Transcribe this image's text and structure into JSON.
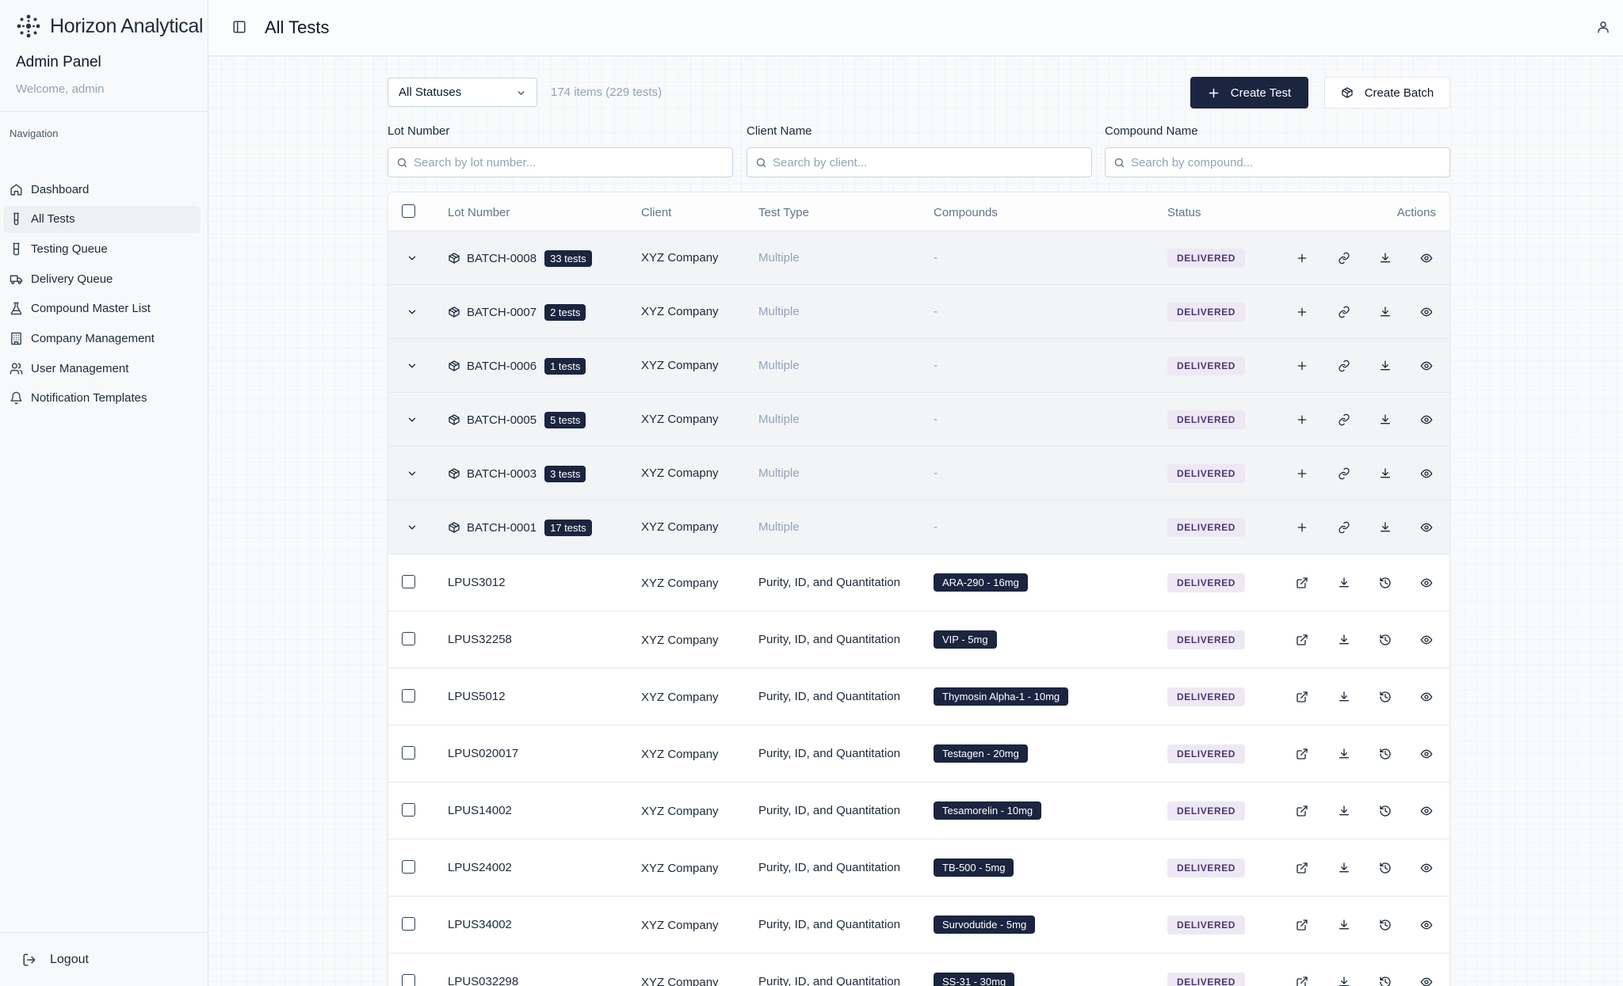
{
  "brand": {
    "name": "Horizon Analytical"
  },
  "sidebar": {
    "title": "Admin Panel",
    "welcome": "Welcome, admin",
    "nav_heading": "Navigation",
    "items": [
      {
        "label": "Dashboard",
        "icon": "home-icon"
      },
      {
        "label": "All Tests",
        "icon": "test-tube-icon",
        "active": true
      },
      {
        "label": "Testing Queue",
        "icon": "flask-icon"
      },
      {
        "label": "Delivery Queue",
        "icon": "truck-icon"
      },
      {
        "label": "Compound Master List",
        "icon": "beaker-icon"
      },
      {
        "label": "Company Management",
        "icon": "building-icon"
      },
      {
        "label": "User Management",
        "icon": "users-icon"
      },
      {
        "label": "Notification Templates",
        "icon": "bell-icon"
      }
    ],
    "logout": "Logout"
  },
  "header": {
    "title": "All Tests"
  },
  "toolbar": {
    "status_filter": "All Statuses",
    "count": "174 items (229 tests)",
    "create_test": "Create Test",
    "create_batch": "Create Batch"
  },
  "filters": {
    "lot": {
      "label": "Lot Number",
      "placeholder": "Search by lot number..."
    },
    "client": {
      "label": "Client Name",
      "placeholder": "Search by client..."
    },
    "compound": {
      "label": "Compound Name",
      "placeholder": "Search by compound..."
    }
  },
  "table": {
    "headers": {
      "lot": "Lot Number",
      "client": "Client",
      "type": "Test Type",
      "compounds": "Compounds",
      "status": "Status",
      "actions": "Actions"
    },
    "batches": [
      {
        "lot": "BATCH-0008",
        "count": "33 tests",
        "client": "XYZ Company",
        "type": "Multiple",
        "compounds": "-",
        "status": "DELIVERED"
      },
      {
        "lot": "BATCH-0007",
        "count": "2 tests",
        "client": "XYZ Company",
        "type": "Multiple",
        "compounds": "-",
        "status": "DELIVERED"
      },
      {
        "lot": "BATCH-0006",
        "count": "1 tests",
        "client": "XYZ Company",
        "type": "Multiple",
        "compounds": "-",
        "status": "DELIVERED"
      },
      {
        "lot": "BATCH-0005",
        "count": "5 tests",
        "client": "XYZ Company",
        "type": "Multiple",
        "compounds": "-",
        "status": "DELIVERED"
      },
      {
        "lot": "BATCH-0003",
        "count": "3 tests",
        "client": "XYZ Comapny",
        "type": "Multiple",
        "compounds": "-",
        "status": "DELIVERED"
      },
      {
        "lot": "BATCH-0001",
        "count": "17 tests",
        "client": "XYZ Company",
        "type": "Multiple",
        "compounds": "-",
        "status": "DELIVERED"
      }
    ],
    "tests": [
      {
        "lot": "LPUS3012",
        "client": "XYZ Company",
        "type": "Purity, ID, and Quantitation",
        "compound": "ARA-290 - 16mg",
        "status": "DELIVERED"
      },
      {
        "lot": "LPUS32258",
        "client": "XYZ Company",
        "type": "Purity, ID, and Quantitation",
        "compound": "VIP - 5mg",
        "status": "DELIVERED"
      },
      {
        "lot": "LPUS5012",
        "client": "XYZ Company",
        "type": "Purity, ID, and Quantitation",
        "compound": "Thymosin Alpha-1 - 10mg",
        "status": "DELIVERED"
      },
      {
        "lot": "LPUS020017",
        "client": "XYZ Company",
        "type": "Purity, ID, and Quantitation",
        "compound": "Testagen - 20mg",
        "status": "DELIVERED"
      },
      {
        "lot": "LPUS14002",
        "client": "XYZ Company",
        "type": "Purity, ID, and Quantitation",
        "compound": "Tesamorelin - 10mg",
        "status": "DELIVERED"
      },
      {
        "lot": "LPUS24002",
        "client": "XYZ Company",
        "type": "Purity, ID, and Quantitation",
        "compound": "TB-500 - 5mg",
        "status": "DELIVERED"
      },
      {
        "lot": "LPUS34002",
        "client": "XYZ Company",
        "type": "Purity, ID, and Quantitation",
        "compound": "Survodutide - 5mg",
        "status": "DELIVERED"
      },
      {
        "lot": "LPUS032298",
        "client": "XYZ Company",
        "type": "Purity, ID, and Quantitation",
        "compound": "SS-31 - 30mg",
        "status": "DELIVERED"
      }
    ]
  },
  "colors": {
    "navy": "#1b2540",
    "status_bg": "#ede9f4",
    "status_text": "#4c3575"
  }
}
